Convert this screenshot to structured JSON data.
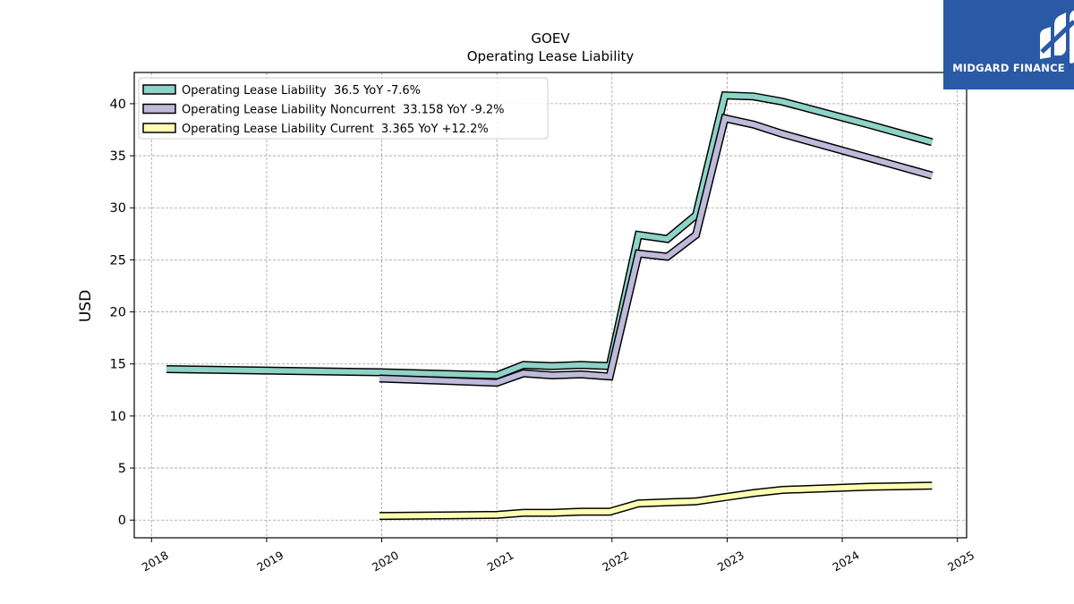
{
  "chart_data": {
    "type": "line",
    "title": "GOEV",
    "subtitle": "Operating Lease Liability",
    "ylabel": "USD",
    "xlabel": "",
    "xlim": [
      2017.85,
      2025.08
    ],
    "ylim": [
      -1.7,
      43.0
    ],
    "yticks": [
      0,
      5,
      10,
      15,
      20,
      25,
      30,
      35,
      40
    ],
    "xticks": [
      "2018",
      "2019",
      "2020",
      "2021",
      "2022",
      "2023",
      "2024",
      "2025"
    ],
    "grid": true,
    "legend_position": "top-left",
    "series": [
      {
        "name": "Operating Lease Liability  36.5 YoY -7.6%",
        "color": "#8dd3c7",
        "points": [
          [
            2018.13,
            14.5
          ],
          [
            2019.98,
            14.2
          ],
          [
            2021.0,
            13.9
          ],
          [
            2021.23,
            14.9
          ],
          [
            2021.48,
            14.8
          ],
          [
            2021.73,
            14.9
          ],
          [
            2021.98,
            14.8
          ],
          [
            2022.23,
            27.4
          ],
          [
            2022.48,
            27.0
          ],
          [
            2022.73,
            29.3
          ],
          [
            2022.98,
            40.8
          ],
          [
            2023.23,
            40.7
          ],
          [
            2023.48,
            40.2
          ],
          [
            2024.23,
            38.0
          ],
          [
            2024.78,
            36.3
          ]
        ]
      },
      {
        "name": "Operating Lease Liability Noncurrent  33.158 YoY -9.2%",
        "color": "#bebada",
        "points": [
          [
            2019.98,
            13.6
          ],
          [
            2021.0,
            13.2
          ],
          [
            2021.23,
            14.1
          ],
          [
            2021.48,
            13.9
          ],
          [
            2021.73,
            14.0
          ],
          [
            2021.98,
            13.8
          ],
          [
            2022.23,
            25.6
          ],
          [
            2022.48,
            25.3
          ],
          [
            2022.73,
            27.4
          ],
          [
            2022.98,
            38.6
          ],
          [
            2023.23,
            38.0
          ],
          [
            2023.48,
            37.1
          ],
          [
            2024.23,
            34.8
          ],
          [
            2024.78,
            33.1
          ]
        ]
      },
      {
        "name": "Operating Lease Liability Current  3.365 YoY +12.2%",
        "color": "#ffffb3",
        "points": [
          [
            2019.98,
            0.4
          ],
          [
            2021.0,
            0.5
          ],
          [
            2021.23,
            0.7
          ],
          [
            2021.48,
            0.7
          ],
          [
            2021.73,
            0.8
          ],
          [
            2021.98,
            0.8
          ],
          [
            2022.23,
            1.6
          ],
          [
            2022.48,
            1.7
          ],
          [
            2022.73,
            1.8
          ],
          [
            2022.98,
            2.2
          ],
          [
            2023.23,
            2.6
          ],
          [
            2023.48,
            2.9
          ],
          [
            2024.23,
            3.2
          ],
          [
            2024.78,
            3.3
          ]
        ]
      }
    ]
  },
  "logo": {
    "text": "MIDGARD FINANCE",
    "background": "#2a59a6"
  }
}
